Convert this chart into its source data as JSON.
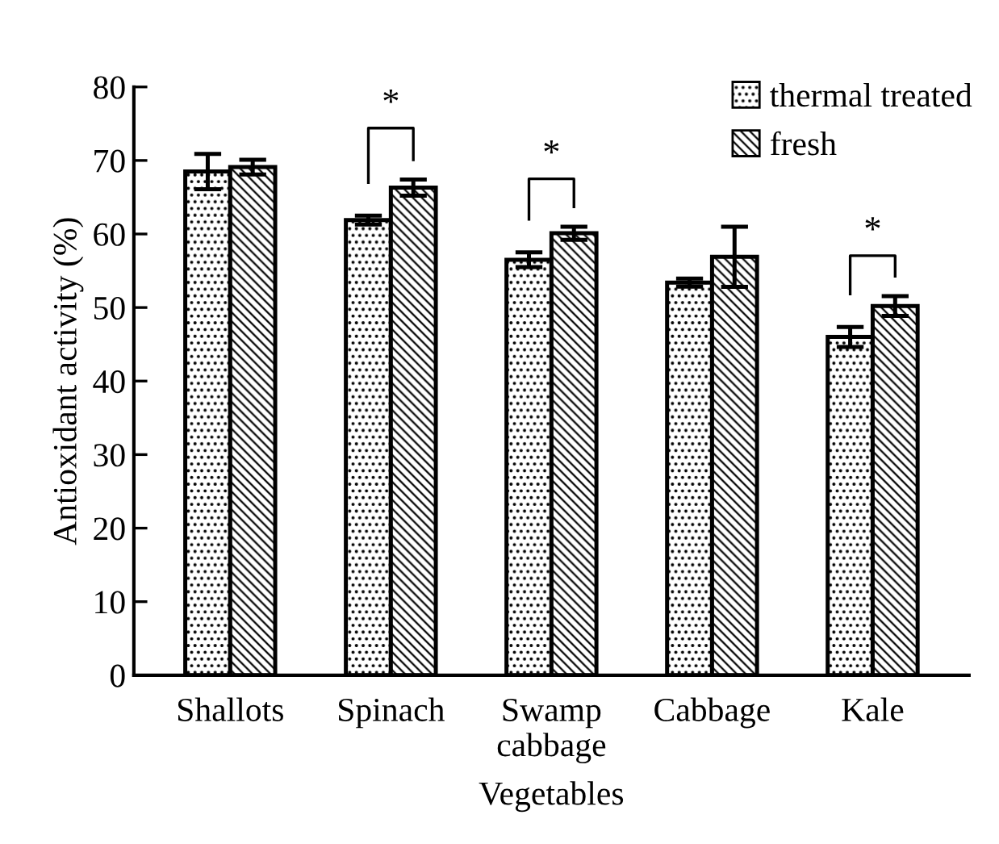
{
  "chart_data": {
    "type": "bar",
    "xlabel": "Vegetables",
    "ylabel": "Antioxidant activity (%)",
    "categories": [
      "Shallots",
      "Spinach",
      "Swamp\ncabbage",
      "Cabbage",
      "Kale"
    ],
    "series": [
      {
        "name": "thermal treated",
        "color": "#000000",
        "values": [
          68.5,
          61.9,
          56.5,
          53.4,
          46.0
        ],
        "errors": [
          2.4,
          0.6,
          1.0,
          0.55,
          1.35
        ]
      },
      {
        "name": "fresh",
        "color": "#000000",
        "values": [
          69.1,
          66.3,
          60.1,
          56.9,
          50.2
        ],
        "errors": [
          1.0,
          1.1,
          0.9,
          4.1,
          1.35
        ]
      }
    ],
    "ylim": [
      0,
      80
    ],
    "yticks": [
      0,
      10,
      20,
      30,
      40,
      50,
      60,
      70,
      80
    ],
    "annotations": [
      "*",
      "*",
      "*"
    ],
    "legend": "top right",
    "grid": false
  }
}
